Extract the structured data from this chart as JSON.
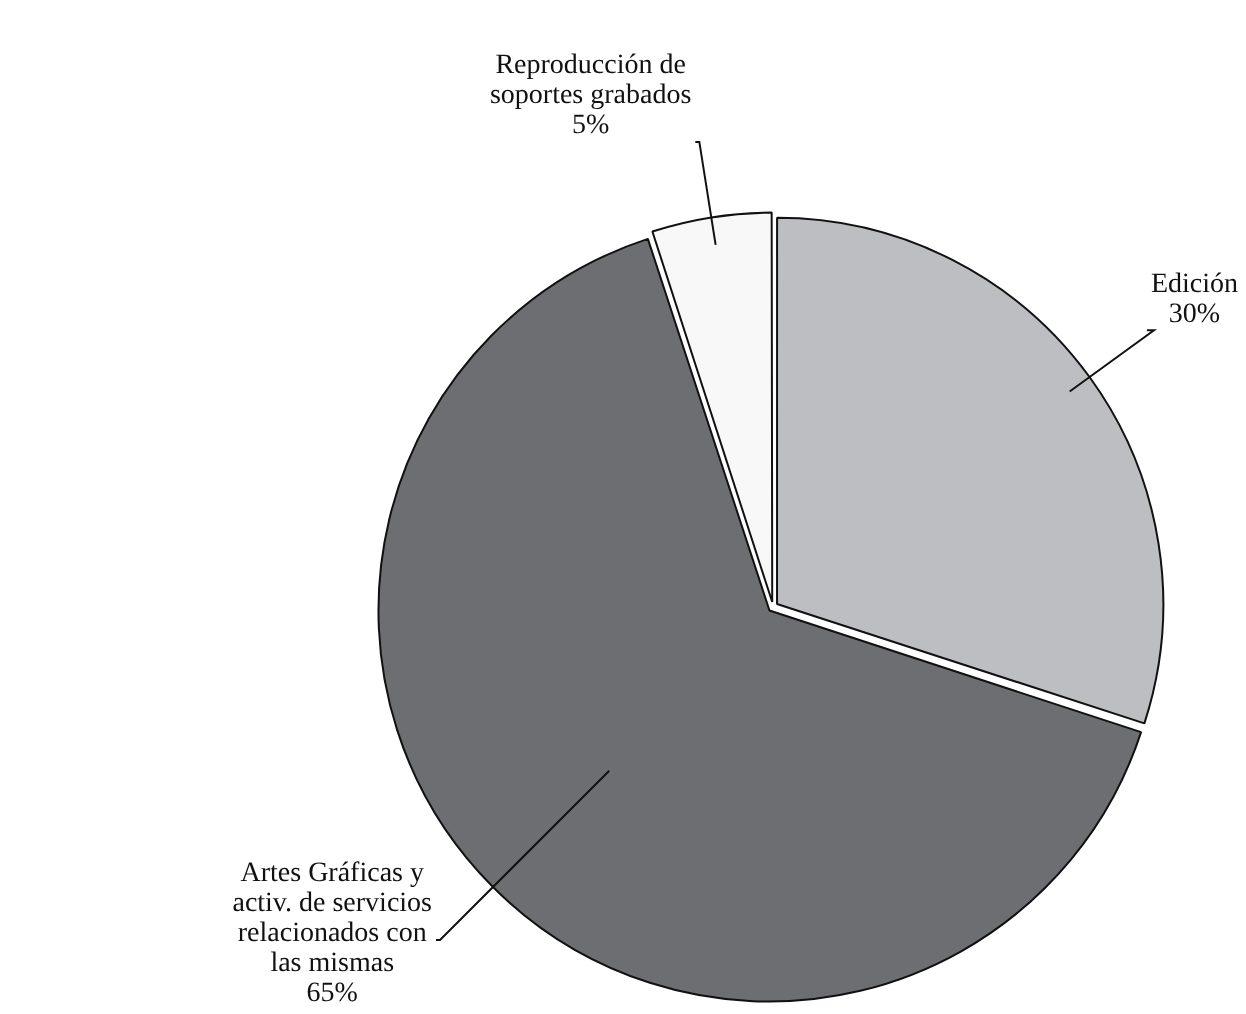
{
  "chart_data": {
    "type": "pie",
    "categories": [
      "Edición",
      "Artes Gráficas y\nactiv. de servicios\nrelacionados con\nlas mismas",
      "Reproducción de\nsoportes grabados"
    ],
    "values": [
      30,
      65,
      5
    ],
    "value_labels": [
      "30%",
      "65%",
      "5%"
    ],
    "colors": [
      "#bdbec1",
      "#6d6e72",
      "#f8f8f8"
    ],
    "legend": false
  }
}
